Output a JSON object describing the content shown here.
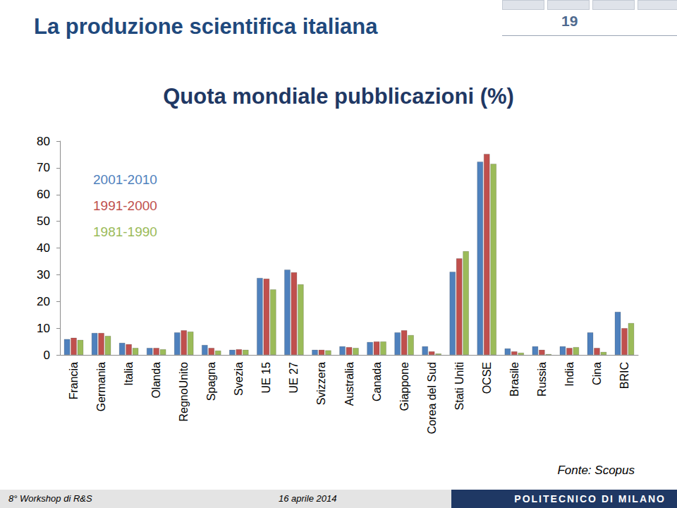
{
  "slide": {
    "heading": "La produzione scientifica italiana",
    "page_number": "19",
    "footer_left": "8° Workshop di R&S",
    "footer_date": "16 aprile 2014",
    "footer_brand": "POLITECNICO DI MILANO"
  },
  "chart_data": {
    "type": "bar",
    "title": "Quota mondiale pubblicazioni (%)",
    "categories": [
      "Francia",
      "Germania",
      "Italia",
      "Olanda",
      "RegnoUnito",
      "Spagna",
      "Svezia",
      "UE 15",
      "UE 27",
      "Svizzera",
      "Australia",
      "Canada",
      "Giappone",
      "Corea del Sud",
      "Stati Uniti",
      "OCSE",
      "Brasile",
      "Russia",
      "India",
      "Cina",
      "BRIC"
    ],
    "series": [
      {
        "name": "2001-2010",
        "color": "#4F81BD",
        "values": [
          5.9,
          8.2,
          4.5,
          2.6,
          8.4,
          3.7,
          1.9,
          28.8,
          31.9,
          1.9,
          3.2,
          4.8,
          8.4,
          3.2,
          31.1,
          72.3,
          2.4,
          3.2,
          3.2,
          8.4,
          16.1
        ]
      },
      {
        "name": "1991-2000",
        "color": "#C0504D",
        "values": [
          6.4,
          8.2,
          4.0,
          2.6,
          9.2,
          2.6,
          2.1,
          28.5,
          30.9,
          1.9,
          2.9,
          5.0,
          9.2,
          1.3,
          36.1,
          75.2,
          1.3,
          1.9,
          2.6,
          2.6,
          10.0
        ]
      },
      {
        "name": "1981-1990",
        "color": "#9BBB59",
        "values": [
          5.6,
          7.1,
          2.6,
          2.1,
          8.7,
          1.6,
          1.9,
          24.5,
          26.4,
          1.7,
          2.6,
          5.0,
          7.4,
          0.5,
          38.8,
          71.5,
          0.8,
          0.3,
          2.9,
          1.1,
          11.9
        ]
      }
    ],
    "ylim": [
      0,
      80
    ],
    "yticks": [
      0,
      10,
      20,
      30,
      40,
      50,
      60,
      70,
      80
    ],
    "grid": false,
    "legend": "upper left",
    "annotations": [
      "Fonte: Scopus"
    ]
  }
}
